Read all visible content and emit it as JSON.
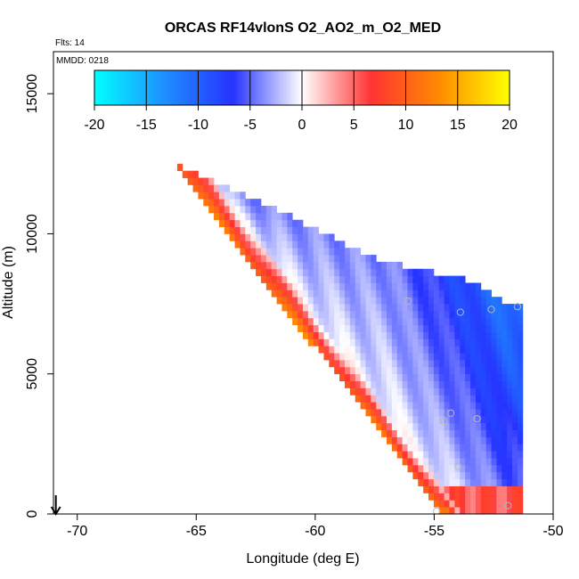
{
  "chart_data": {
    "type": "heatmap",
    "title": "ORCAS RF14vlonS O2_AO2_m_O2_MED",
    "flights_note": "Flts: 14",
    "date_note": "MMDD: 0218",
    "xlabel": "Longitude (deg E)",
    "ylabel": "Altitude (m)",
    "xlim": [
      -71,
      -50
    ],
    "ylim": [
      0,
      16500
    ],
    "x_ticks": [
      -70,
      -65,
      -60,
      -55,
      -50
    ],
    "y_ticks": [
      0,
      5000,
      10000,
      15000
    ],
    "colorbar": {
      "range": [
        -20,
        20
      ],
      "ticks": [
        -20,
        -15,
        -10,
        -5,
        0,
        5,
        10,
        15,
        20
      ],
      "stops": [
        "#00ffff",
        "#1e90ff",
        "#2633ff",
        "#ffffff",
        "#ff3333",
        "#ff8c00",
        "#ffff00"
      ]
    },
    "field": {
      "lon_range": [
        -65.8,
        -51.5
      ],
      "cell_width_deg": 0.22,
      "cell_height_m": 250,
      "lower_edge_line": {
        "lon": [
          -65.8,
          -55
        ],
        "alt": [
          12300,
          400
        ]
      },
      "upper_edge": [
        [
          -65.8,
          12300
        ],
        [
          -61,
          10500
        ],
        [
          -57.5,
          9000
        ],
        [
          -53.5,
          8200
        ],
        [
          -52,
          7400
        ],
        [
          -51.5,
          7400
        ]
      ],
      "zero_line": {
        "lon": [
          -63.5,
          -54.5
        ],
        "alt": [
          11000,
          700
        ]
      },
      "red_max_value": 12,
      "blue_max_value": -11
    },
    "observation_points": [
      {
        "lon": -56.1,
        "alt": 7600
      },
      {
        "lon": -53.9,
        "alt": 7200
      },
      {
        "lon": -52.6,
        "alt": 7300
      },
      {
        "lon": -51.5,
        "alt": 7400
      },
      {
        "lon": -54.3,
        "alt": 3600
      },
      {
        "lon": -54.6,
        "alt": 3300
      },
      {
        "lon": -53.2,
        "alt": 3400
      },
      {
        "lon": -54.0,
        "alt": 1700
      },
      {
        "lon": -51.9,
        "alt": 300
      },
      {
        "lon": -54.9,
        "alt": 100
      }
    ],
    "arrow_marker_lon": -70.9
  }
}
